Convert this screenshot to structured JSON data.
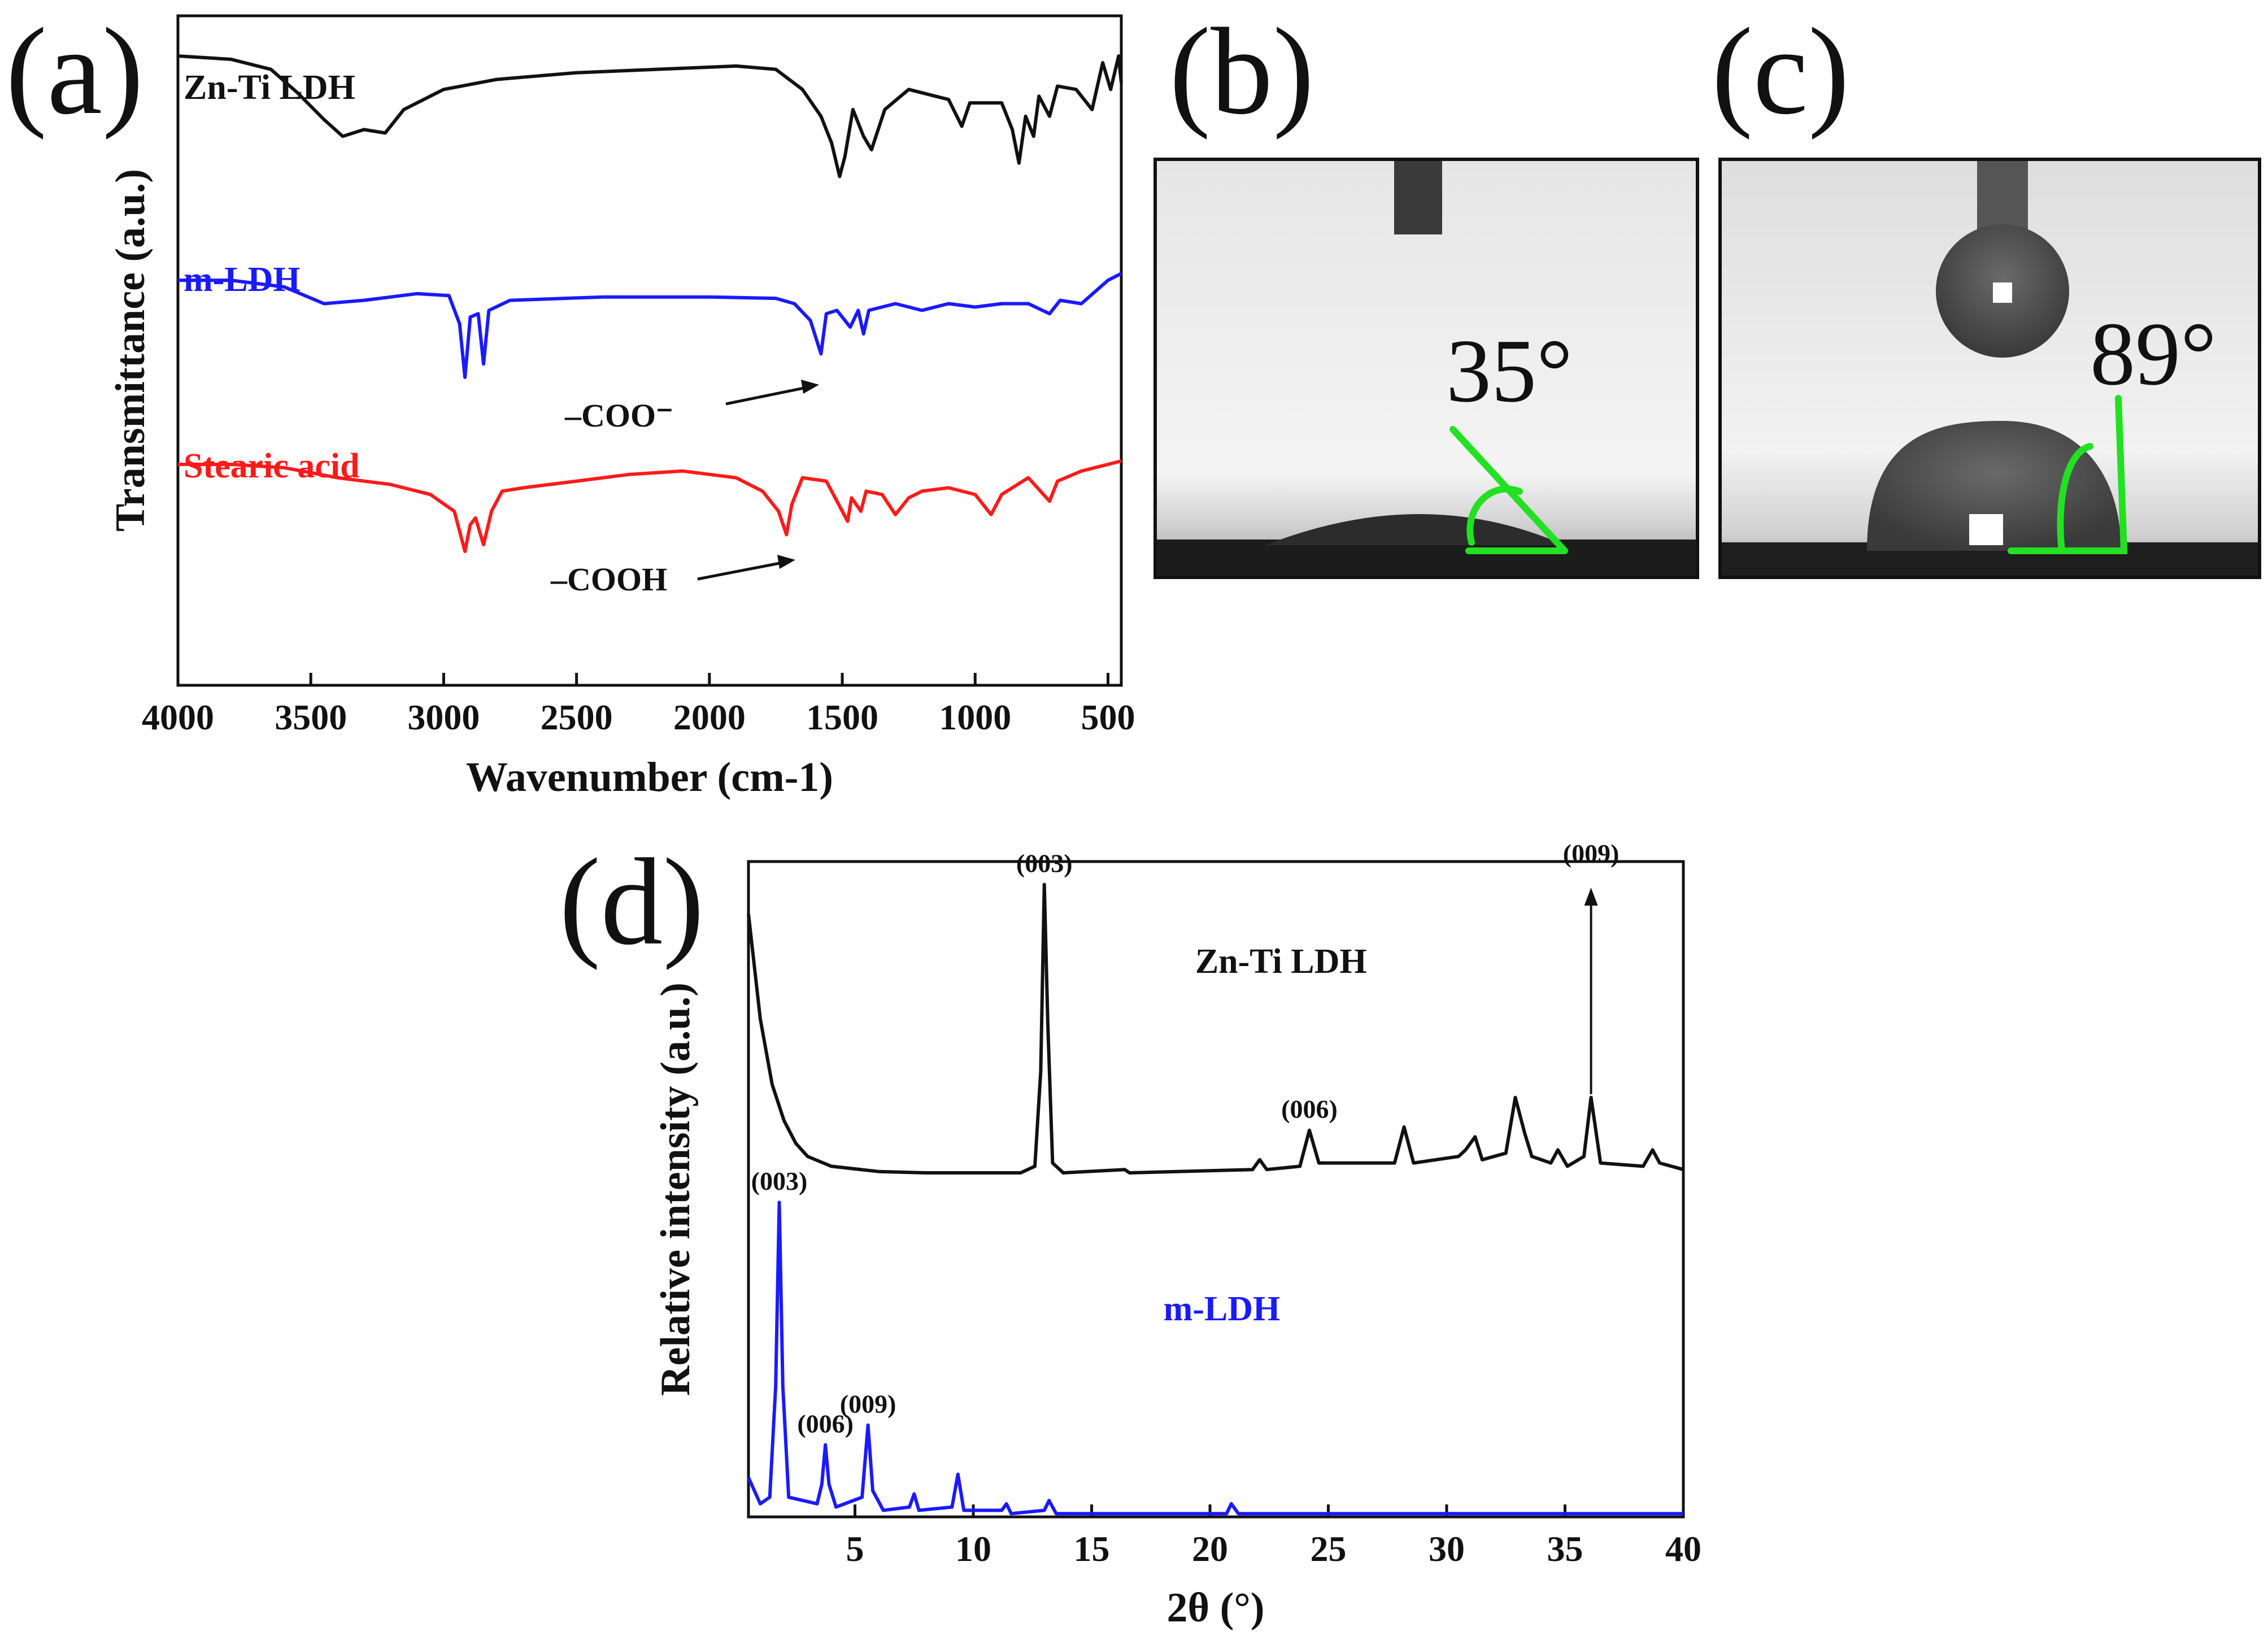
{
  "colors": {
    "black": "#111111",
    "blue": "#1a1aff",
    "red": "#ff1a1a",
    "green": "#22e022"
  },
  "panels": {
    "a": {
      "letter": "(a)"
    },
    "b": {
      "letter": "(b)",
      "angle": "35°"
    },
    "c": {
      "letter": "(c)",
      "angle": "89°"
    },
    "d": {
      "letter": "(d)"
    }
  },
  "chart_data": [
    {
      "id": "a",
      "type": "line",
      "title": "",
      "xlabel": "Wavenumber (cm-1)",
      "ylabel": "Transmittance (a.u.)",
      "xlim": [
        4000,
        450
      ],
      "ylim": [
        0,
        10
      ],
      "x_ticks": [
        4000,
        3500,
        3000,
        2500,
        2000,
        1500,
        1000,
        500
      ],
      "x_tick_labels": [
        "4000",
        "3500",
        "3000",
        "2500",
        "2000",
        "1500",
        "1000",
        "500"
      ],
      "series": [
        {
          "name": "Zn-Ti LDH",
          "color": "#111111",
          "points": [
            [
              4000,
              9.4
            ],
            [
              3800,
              9.35
            ],
            [
              3650,
              9.2
            ],
            [
              3550,
              8.85
            ],
            [
              3450,
              8.45
            ],
            [
              3380,
              8.2
            ],
            [
              3300,
              8.3
            ],
            [
              3220,
              8.25
            ],
            [
              3150,
              8.6
            ],
            [
              3000,
              8.9
            ],
            [
              2800,
              9.05
            ],
            [
              2500,
              9.15
            ],
            [
              2200,
              9.2
            ],
            [
              1900,
              9.25
            ],
            [
              1750,
              9.2
            ],
            [
              1650,
              8.9
            ],
            [
              1580,
              8.5
            ],
            [
              1540,
              8.1
            ],
            [
              1510,
              7.6
            ],
            [
              1490,
              7.9
            ],
            [
              1460,
              8.6
            ],
            [
              1420,
              8.2
            ],
            [
              1390,
              8.0
            ],
            [
              1340,
              8.6
            ],
            [
              1250,
              8.9
            ],
            [
              1150,
              8.8
            ],
            [
              1100,
              8.75
            ],
            [
              1050,
              8.35
            ],
            [
              1020,
              8.7
            ],
            [
              900,
              8.7
            ],
            [
              860,
              8.3
            ],
            [
              835,
              7.8
            ],
            [
              810,
              8.5
            ],
            [
              780,
              8.2
            ],
            [
              760,
              8.8
            ],
            [
              720,
              8.5
            ],
            [
              690,
              8.95
            ],
            [
              620,
              8.9
            ],
            [
              560,
              8.6
            ],
            [
              520,
              9.3
            ],
            [
              490,
              8.9
            ],
            [
              460,
              9.4
            ],
            [
              450,
              9.0
            ]
          ]
        },
        {
          "name": "m-LDH",
          "color": "#1a1aff",
          "points": [
            [
              4000,
              6.05
            ],
            [
              3800,
              6.05
            ],
            [
              3600,
              5.95
            ],
            [
              3450,
              5.7
            ],
            [
              3300,
              5.75
            ],
            [
              3100,
              5.85
            ],
            [
              2980,
              5.82
            ],
            [
              2940,
              5.4
            ],
            [
              2920,
              4.6
            ],
            [
              2900,
              5.5
            ],
            [
              2870,
              5.55
            ],
            [
              2850,
              4.8
            ],
            [
              2830,
              5.6
            ],
            [
              2750,
              5.75
            ],
            [
              2400,
              5.8
            ],
            [
              2000,
              5.8
            ],
            [
              1750,
              5.78
            ],
            [
              1680,
              5.7
            ],
            [
              1620,
              5.45
            ],
            [
              1580,
              4.95
            ],
            [
              1560,
              5.55
            ],
            [
              1520,
              5.6
            ],
            [
              1470,
              5.35
            ],
            [
              1440,
              5.6
            ],
            [
              1420,
              5.25
            ],
            [
              1400,
              5.6
            ],
            [
              1300,
              5.7
            ],
            [
              1200,
              5.6
            ],
            [
              1100,
              5.7
            ],
            [
              1000,
              5.65
            ],
            [
              900,
              5.7
            ],
            [
              800,
              5.7
            ],
            [
              720,
              5.55
            ],
            [
              680,
              5.75
            ],
            [
              600,
              5.7
            ],
            [
              500,
              6.05
            ],
            [
              450,
              6.15
            ]
          ]
        },
        {
          "name": "Stearic acid",
          "color": "#ff1a1a",
          "points": [
            [
              4000,
              3.3
            ],
            [
              3800,
              3.3
            ],
            [
              3600,
              3.25
            ],
            [
              3400,
              3.1
            ],
            [
              3200,
              3.0
            ],
            [
              3050,
              2.85
            ],
            [
              2960,
              2.6
            ],
            [
              2920,
              2.0
            ],
            [
              2900,
              2.4
            ],
            [
              2880,
              2.5
            ],
            [
              2850,
              2.1
            ],
            [
              2820,
              2.6
            ],
            [
              2780,
              2.9
            ],
            [
              2700,
              2.95
            ],
            [
              2600,
              3.0
            ],
            [
              2500,
              3.05
            ],
            [
              2300,
              3.15
            ],
            [
              2100,
              3.2
            ],
            [
              1900,
              3.1
            ],
            [
              1800,
              2.9
            ],
            [
              1740,
              2.6
            ],
            [
              1710,
              2.25
            ],
            [
              1690,
              2.7
            ],
            [
              1650,
              3.1
            ],
            [
              1560,
              3.05
            ],
            [
              1480,
              2.45
            ],
            [
              1465,
              2.8
            ],
            [
              1430,
              2.6
            ],
            [
              1410,
              2.9
            ],
            [
              1350,
              2.85
            ],
            [
              1300,
              2.55
            ],
            [
              1250,
              2.8
            ],
            [
              1200,
              2.9
            ],
            [
              1100,
              2.95
            ],
            [
              1000,
              2.85
            ],
            [
              940,
              2.55
            ],
            [
              900,
              2.85
            ],
            [
              800,
              3.1
            ],
            [
              720,
              2.75
            ],
            [
              690,
              3.05
            ],
            [
              600,
              3.2
            ],
            [
              500,
              3.3
            ],
            [
              450,
              3.35
            ]
          ]
        }
      ],
      "annotations": [
        {
          "text": "–COO⁻",
          "x": 1590,
          "y": 5.0
        },
        {
          "text": "–COOH",
          "x": 1705,
          "y": 2.25
        }
      ]
    },
    {
      "id": "d",
      "type": "line",
      "title": "",
      "xlabel": "2θ (°)",
      "ylabel": "Relative intensity (a.u.)",
      "xlim": [
        0.5,
        40
      ],
      "ylim": [
        0,
        10
      ],
      "x_ticks": [
        5,
        10,
        15,
        20,
        25,
        30,
        35,
        40
      ],
      "x_tick_labels": [
        "5",
        "10",
        "15",
        "20",
        "25",
        "30",
        "35",
        "40"
      ],
      "series": [
        {
          "name": "Zn-Ti LDH",
          "color": "#111111",
          "points": [
            [
              0.5,
              9.2
            ],
            [
              1.0,
              7.6
            ],
            [
              1.5,
              6.6
            ],
            [
              2.0,
              6.05
            ],
            [
              2.5,
              5.7
            ],
            [
              3.0,
              5.5
            ],
            [
              4.0,
              5.35
            ],
            [
              6.0,
              5.27
            ],
            [
              8.0,
              5.25
            ],
            [
              12.0,
              5.25
            ],
            [
              12.6,
              5.35
            ],
            [
              12.85,
              6.8
            ],
            [
              13.0,
              9.65
            ],
            [
              13.15,
              7.5
            ],
            [
              13.35,
              5.4
            ],
            [
              13.8,
              5.25
            ],
            [
              16.4,
              5.3
            ],
            [
              16.6,
              5.25
            ],
            [
              21.8,
              5.3
            ],
            [
              22.1,
              5.45
            ],
            [
              22.4,
              5.3
            ],
            [
              23.8,
              5.35
            ],
            [
              24.2,
              5.9
            ],
            [
              24.6,
              5.4
            ],
            [
              27.8,
              5.4
            ],
            [
              28.2,
              5.95
            ],
            [
              28.6,
              5.4
            ],
            [
              30.5,
              5.5
            ],
            [
              30.8,
              5.6
            ],
            [
              31.2,
              5.8
            ],
            [
              31.5,
              5.45
            ],
            [
              32.5,
              5.55
            ],
            [
              32.9,
              6.4
            ],
            [
              33.3,
              5.85
            ],
            [
              33.6,
              5.5
            ],
            [
              34.4,
              5.4
            ],
            [
              34.7,
              5.6
            ],
            [
              35.1,
              5.35
            ],
            [
              35.8,
              5.5
            ],
            [
              36.1,
              6.4
            ],
            [
              36.5,
              5.4
            ],
            [
              38.3,
              5.35
            ],
            [
              38.7,
              5.6
            ],
            [
              39.0,
              5.4
            ],
            [
              40,
              5.3
            ]
          ]
        },
        {
          "name": "m-LDH",
          "color": "#1a1aff",
          "points": [
            [
              0.5,
              0.6
            ],
            [
              1.0,
              0.2
            ],
            [
              1.4,
              0.3
            ],
            [
              1.65,
              2.0
            ],
            [
              1.8,
              4.8
            ],
            [
              1.95,
              2.0
            ],
            [
              2.2,
              0.3
            ],
            [
              3.4,
              0.2
            ],
            [
              3.6,
              0.5
            ],
            [
              3.75,
              1.1
            ],
            [
              3.9,
              0.5
            ],
            [
              4.2,
              0.15
            ],
            [
              5.3,
              0.3
            ],
            [
              5.55,
              1.4
            ],
            [
              5.75,
              0.4
            ],
            [
              6.2,
              0.1
            ],
            [
              7.3,
              0.15
            ],
            [
              7.5,
              0.35
            ],
            [
              7.7,
              0.1
            ],
            [
              9.1,
              0.15
            ],
            [
              9.35,
              0.65
            ],
            [
              9.6,
              0.1
            ],
            [
              11.2,
              0.1
            ],
            [
              11.4,
              0.2
            ],
            [
              11.6,
              0.05
            ],
            [
              13.0,
              0.1
            ],
            [
              13.2,
              0.25
            ],
            [
              13.5,
              0.05
            ],
            [
              20.7,
              0.05
            ],
            [
              20.9,
              0.2
            ],
            [
              21.2,
              0.05
            ],
            [
              40,
              0.05
            ]
          ]
        }
      ],
      "peak_labels": [
        {
          "text": "(003)",
          "x": 13.0,
          "y": 9.65
        },
        {
          "text": "(006)",
          "x": 24.2,
          "y": 5.9
        },
        {
          "text": "(009)",
          "x": 36.1,
          "y": 9.8
        },
        {
          "text": "(003)",
          "x": 1.8,
          "y": 4.8
        },
        {
          "text": "(006)",
          "x": 3.75,
          "y": 1.1
        },
        {
          "text": "(009)",
          "x": 5.55,
          "y": 1.4
        }
      ],
      "series_labels": [
        {
          "text": "Zn-Ti LDH",
          "x": 23.0,
          "y": 8.3
        },
        {
          "text": "m-LDH",
          "x": 20.5,
          "y": 3.0
        }
      ]
    }
  ]
}
